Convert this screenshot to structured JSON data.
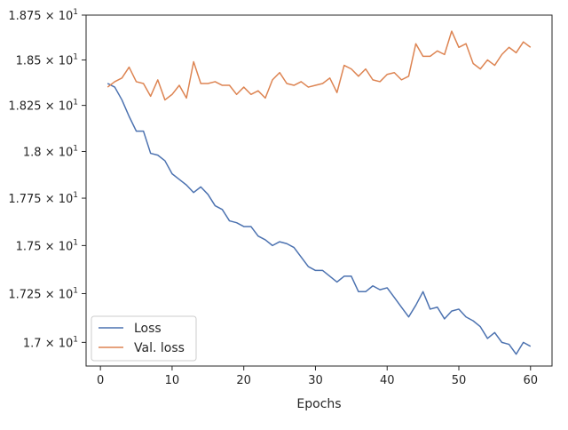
{
  "chart_data": {
    "type": "line",
    "xlabel": "Epochs",
    "ylabel": "",
    "xlim": [
      -2,
      63
    ],
    "ylim": [
      16.88,
      18.75
    ],
    "y_scale": "log",
    "x_ticks": [
      0,
      10,
      20,
      30,
      40,
      50,
      60
    ],
    "x_tick_labels": [
      "0",
      "10",
      "20",
      "30",
      "40",
      "50",
      "60"
    ],
    "y_ticks": [
      17.0,
      17.25,
      17.5,
      17.75,
      18.0,
      18.25,
      18.5,
      18.75
    ],
    "y_tick_labels": [
      {
        "mant": "1.7",
        "exp": "1"
      },
      {
        "mant": "1.725",
        "exp": "1"
      },
      {
        "mant": "1.75",
        "exp": "1"
      },
      {
        "mant": "1.775",
        "exp": "1"
      },
      {
        "mant": "1.8",
        "exp": "1"
      },
      {
        "mant": "1.825",
        "exp": "1"
      },
      {
        "mant": "1.85",
        "exp": "1"
      },
      {
        "mant": "1.875",
        "exp": "1"
      }
    ],
    "tick_times": "×",
    "grid": false,
    "legend_position": "lower-left",
    "x": [
      1,
      2,
      3,
      4,
      5,
      6,
      7,
      8,
      9,
      10,
      11,
      12,
      13,
      14,
      15,
      16,
      17,
      18,
      19,
      20,
      21,
      22,
      23,
      24,
      25,
      26,
      27,
      28,
      29,
      30,
      31,
      32,
      33,
      34,
      35,
      36,
      37,
      38,
      39,
      40,
      41,
      42,
      43,
      44,
      45,
      46,
      47,
      48,
      49,
      50,
      51,
      52,
      53,
      54,
      55,
      56,
      57,
      58,
      59,
      60
    ],
    "series": [
      {
        "name": "Loss",
        "color": "#4c72b0",
        "values": [
          18.37,
          18.35,
          18.28,
          18.19,
          18.11,
          18.11,
          17.99,
          17.98,
          17.95,
          17.88,
          17.85,
          17.82,
          17.78,
          17.81,
          17.77,
          17.71,
          17.69,
          17.63,
          17.62,
          17.6,
          17.6,
          17.55,
          17.53,
          17.5,
          17.52,
          17.51,
          17.49,
          17.44,
          17.39,
          17.37,
          17.37,
          17.34,
          17.31,
          17.34,
          17.34,
          17.26,
          17.26,
          17.29,
          17.27,
          17.28,
          17.23,
          17.18,
          17.13,
          17.19,
          17.26,
          17.17,
          17.18,
          17.12,
          17.16,
          17.17,
          17.13,
          17.11,
          17.08,
          17.02,
          17.05,
          17.0,
          16.99,
          16.94,
          17.0,
          16.98
        ]
      },
      {
        "name": "Val. loss",
        "color": "#dd8452",
        "values": [
          18.35,
          18.38,
          18.4,
          18.46,
          18.38,
          18.37,
          18.3,
          18.39,
          18.28,
          18.31,
          18.36,
          18.29,
          18.49,
          18.37,
          18.37,
          18.38,
          18.36,
          18.36,
          18.31,
          18.35,
          18.31,
          18.33,
          18.29,
          18.39,
          18.43,
          18.37,
          18.36,
          18.38,
          18.35,
          18.36,
          18.37,
          18.4,
          18.32,
          18.47,
          18.45,
          18.41,
          18.45,
          18.39,
          18.38,
          18.42,
          18.43,
          18.39,
          18.41,
          18.59,
          18.52,
          18.52,
          18.55,
          18.53,
          18.66,
          18.57,
          18.59,
          18.48,
          18.45,
          18.5,
          18.47,
          18.53,
          18.57,
          18.54,
          18.6,
          18.57
        ]
      }
    ]
  }
}
